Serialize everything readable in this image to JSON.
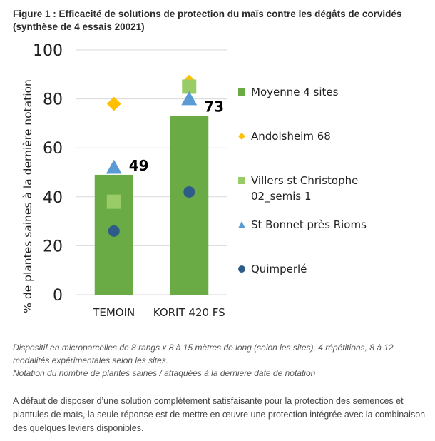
{
  "figure": {
    "title": "Figure 1 : Efficacité de solutions de protection du maïs contre les dégâts de corvidés (synthèse de 4 essais 20021)"
  },
  "chart_data": {
    "type": "bar",
    "categories": [
      "TEMOIN",
      "KORIT 420 FS"
    ],
    "ylabel": "% de plantes saines à la dernière notation",
    "ylim": [
      0,
      100
    ],
    "yticks": [
      0,
      20,
      40,
      60,
      80,
      100
    ],
    "grid": true,
    "legend_position": "right",
    "series": [
      {
        "name": "Moyenne 4 sites",
        "kind": "bar",
        "color": "#6aab46",
        "values": [
          49,
          73
        ],
        "data_labels": [
          "49",
          "73"
        ]
      },
      {
        "name": "Andolsheim 68",
        "kind": "diamond",
        "color": "#ffc000",
        "values": [
          78,
          87
        ]
      },
      {
        "name": "Villers st Christophe 02_semis 1",
        "kind": "square",
        "color": "#99cc66",
        "values": [
          38,
          85
        ]
      },
      {
        "name": "St Bonnet près Rioms",
        "kind": "triangle",
        "color": "#5b9bd5",
        "values": [
          52,
          80
        ]
      },
      {
        "name": "Quimperlé",
        "kind": "circle",
        "color": "#2e5c8a",
        "values": [
          26,
          42
        ]
      }
    ]
  },
  "caption": {
    "line1": "Dispositif en microparcelles de 8 rangs x 8 à 15 mètres de long (selon les sites), 4 répétitions, 8 à 12 modalités expérimentales selon les sites.",
    "line2": "Notation du nombre de plantes saines / attaquées à la dernière date de notation"
  },
  "body": {
    "paragraph": "A défaut de disposer d’une solution complètement satisfaisante pour la protection des semences et plantules de maïs, la seule réponse est de mettre en œuvre une protection intégrée avec la combinaison des quelques leviers disponibles."
  }
}
